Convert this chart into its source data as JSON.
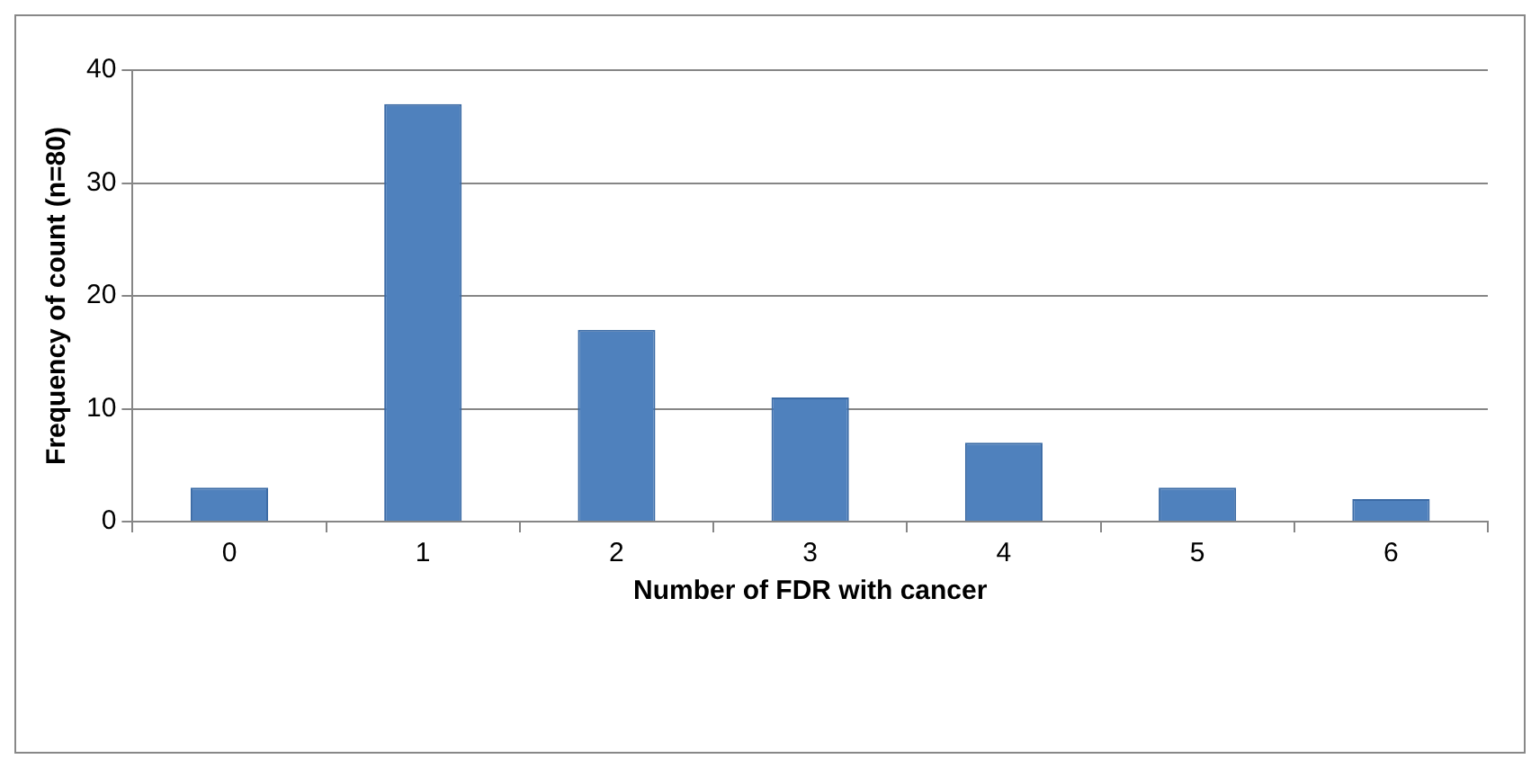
{
  "chart_data": {
    "type": "bar",
    "xlabel": "Number of FDR with cancer",
    "ylabel": "Frequency of count (n=80)",
    "categories": [
      "0",
      "1",
      "2",
      "3",
      "4",
      "5",
      "6"
    ],
    "values": [
      3,
      37,
      17,
      11,
      7,
      3,
      2
    ],
    "color": "#4f81bd",
    "ylim": [
      0,
      40
    ],
    "yticks": [
      0,
      10,
      20,
      30,
      40
    ],
    "grid": "y",
    "legend": false
  }
}
